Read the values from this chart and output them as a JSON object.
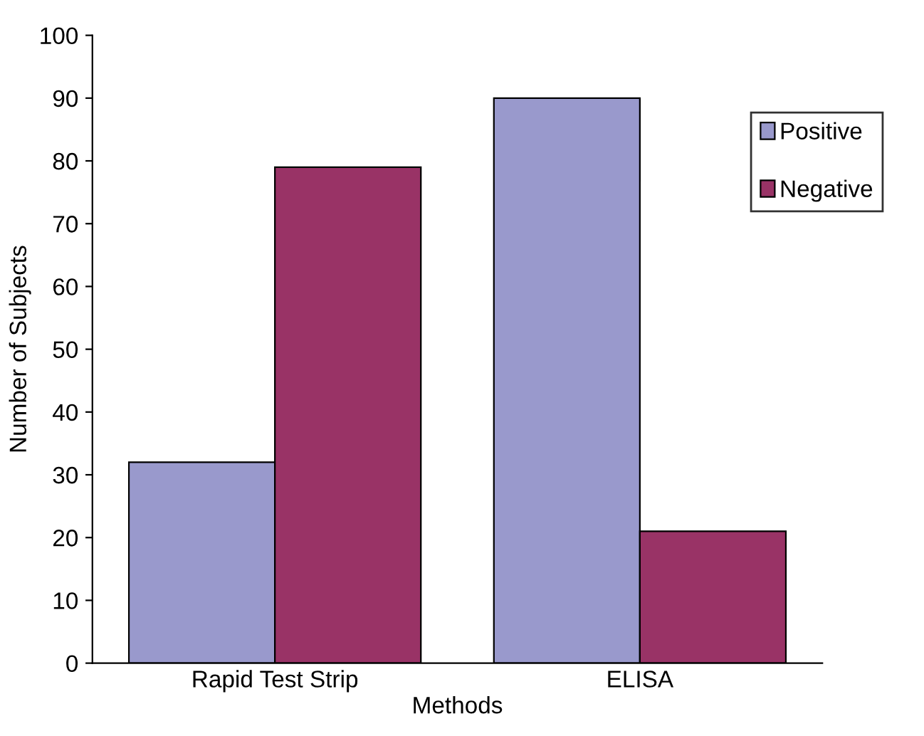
{
  "chart_data": {
    "type": "bar",
    "xlabel": "Methods",
    "ylabel": "Number of Subjects",
    "categories": [
      "Rapid Test Strip",
      "ELISA"
    ],
    "series": [
      {
        "name": "Positive",
        "color": "#9999cc",
        "values": [
          32,
          90
        ]
      },
      {
        "name": "Negative",
        "color": "#993366",
        "values": [
          79,
          21
        ]
      }
    ],
    "ylim": [
      0,
      100
    ],
    "yticks": [
      0,
      10,
      20,
      30,
      40,
      50,
      60,
      70,
      80,
      90,
      100
    ],
    "legend": "right",
    "grid": false
  }
}
